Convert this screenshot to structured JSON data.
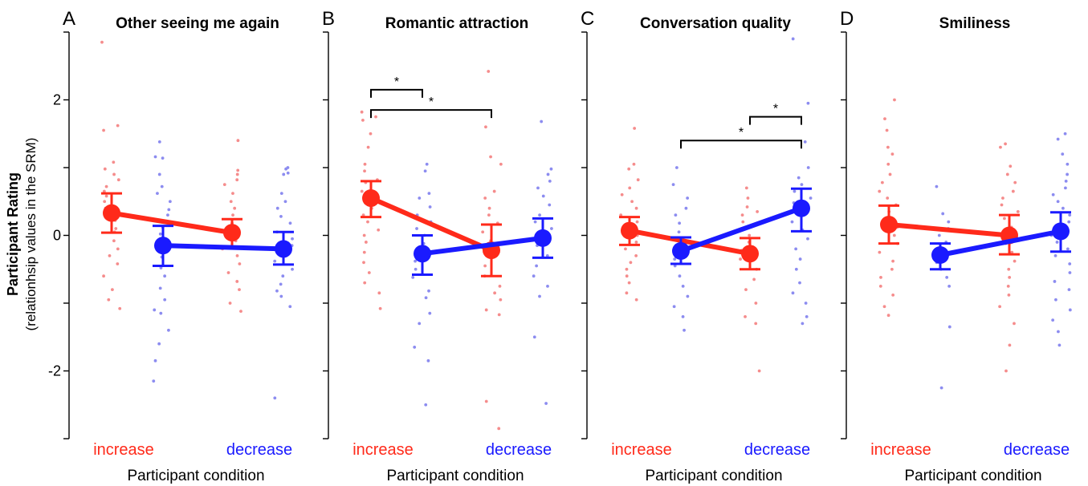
{
  "colors": {
    "increase": "#ff2a1a",
    "decrease": "#1a1aff",
    "increase_light": "#f58c8c",
    "decrease_light": "#8c8cf0"
  },
  "ylabel_bold": "Participant Rating",
  "ylabel_sub": "(relationhsip values in the SRM)",
  "chart_data": [
    {
      "type": "scatter",
      "letter": "A",
      "title": "Other seeing me again",
      "xlabel": "Participant condition",
      "ylim": [
        -3,
        3
      ],
      "yticks": [
        -2,
        0,
        2
      ],
      "categories": [
        "increase",
        "decrease"
      ],
      "show_ytick_labels": true,
      "series": [
        {
          "name": "increase",
          "means": [
            0.33,
            0.04
          ],
          "ci_low": [
            0.04,
            -0.18
          ],
          "ci_high": [
            0.62,
            0.24
          ]
        },
        {
          "name": "decrease",
          "means": [
            -0.15,
            -0.2
          ],
          "ci_low": [
            -0.45,
            -0.43
          ],
          "ci_high": [
            0.14,
            0.05
          ]
        }
      ],
      "points": [
        {
          "pos": 0,
          "series": "increase",
          "values": [
            2.85,
            1.62,
            1.55,
            1.08,
            0.98,
            0.9,
            0.82,
            0.72,
            0.65,
            0.58,
            0.5,
            0.4,
            0.35,
            0.3,
            0.22,
            0.1,
            0.05,
            -0.08,
            -0.2,
            -0.3,
            -0.42,
            -0.6,
            -0.8,
            -0.95,
            -1.08
          ]
        },
        {
          "pos": 1,
          "series": "decrease",
          "values": [
            1.38,
            1.16,
            1.14,
            0.9,
            0.72,
            0.62,
            0.5,
            0.38,
            0.3,
            0.2,
            0.12,
            0.02,
            -0.1,
            -0.2,
            -0.32,
            -0.48,
            -0.6,
            -0.78,
            -0.95,
            -1.1,
            -1.15,
            -1.4,
            -1.6,
            -1.85,
            -2.15
          ]
        },
        {
          "pos": 2,
          "series": "increase",
          "values": [
            1.4,
            0.96,
            0.9,
            0.82,
            0.75,
            0.62,
            0.5,
            0.4,
            0.3,
            0.18,
            0.1,
            0.02,
            -0.08,
            -0.2,
            -0.3,
            -0.42,
            -0.55,
            -0.68,
            -0.8,
            -1.0,
            -1.12
          ]
        },
        {
          "pos": 3,
          "series": "decrease",
          "values": [
            1.0,
            0.98,
            0.92,
            0.9,
            0.62,
            0.5,
            0.4,
            0.28,
            0.18,
            0.05,
            -0.05,
            -0.15,
            -0.25,
            -0.38,
            -0.5,
            -0.6,
            -0.72,
            -0.82,
            -0.9,
            -1.05,
            -2.4
          ]
        }
      ],
      "significance": []
    },
    {
      "type": "scatter",
      "letter": "B",
      "title": "Romantic attraction",
      "xlabel": "Participant condition",
      "ylim": [
        -3,
        3
      ],
      "yticks": [
        -2,
        0,
        2
      ],
      "categories": [
        "increase",
        "decrease"
      ],
      "show_ytick_labels": false,
      "series": [
        {
          "name": "increase",
          "means": [
            0.55,
            -0.22
          ],
          "ci_low": [
            0.27,
            -0.6
          ],
          "ci_high": [
            0.8,
            0.16
          ]
        },
        {
          "name": "decrease",
          "means": [
            -0.27,
            -0.04
          ],
          "ci_low": [
            -0.58,
            -0.33
          ],
          "ci_high": [
            0.0,
            0.25
          ]
        }
      ],
      "points": [
        {
          "pos": 0,
          "series": "increase",
          "values": [
            1.82,
            1.75,
            1.7,
            1.5,
            1.3,
            1.05,
            0.95,
            0.82,
            0.78,
            0.65,
            0.55,
            0.48,
            0.4,
            0.3,
            0.2,
            0.08,
            0.0,
            -0.1,
            -0.25,
            -0.4,
            -0.55,
            -0.7,
            -0.85,
            -1.08
          ]
        },
        {
          "pos": 1,
          "series": "decrease",
          "values": [
            1.05,
            0.95,
            0.62,
            0.55,
            0.42,
            0.3,
            0.2,
            0.1,
            0.0,
            -0.12,
            -0.25,
            -0.38,
            -0.5,
            -0.62,
            -0.82,
            -0.92,
            -1.15,
            -1.3,
            -1.65,
            -1.85,
            -2.5
          ]
        },
        {
          "pos": 2,
          "series": "increase",
          "values": [
            2.42,
            1.6,
            1.16,
            1.05,
            0.65,
            0.55,
            0.4,
            0.3,
            0.18,
            0.05,
            -0.08,
            -0.2,
            -0.3,
            -0.45,
            -0.6,
            -0.75,
            -0.85,
            -0.95,
            -1.1,
            -1.17,
            -2.45,
            -2.85
          ]
        },
        {
          "pos": 3,
          "series": "decrease",
          "values": [
            1.68,
            0.98,
            0.9,
            0.8,
            0.7,
            0.58,
            0.45,
            0.3,
            0.2,
            0.1,
            -0.02,
            -0.15,
            -0.3,
            -0.45,
            -0.6,
            -0.75,
            -0.9,
            -1.5,
            -2.48
          ]
        }
      ],
      "significance": [
        {
          "from": 0,
          "to": 1,
          "y": 2.15,
          "label": "*"
        },
        {
          "from": 0,
          "to": 2,
          "y": 1.85,
          "label": "*"
        }
      ]
    },
    {
      "type": "scatter",
      "letter": "C",
      "title": "Conversation quality",
      "xlabel": "Participant condition",
      "ylim": [
        -3,
        3
      ],
      "yticks": [
        -2,
        0,
        2
      ],
      "categories": [
        "increase",
        "decrease"
      ],
      "show_ytick_labels": false,
      "series": [
        {
          "name": "increase",
          "means": [
            0.07,
            -0.27
          ],
          "ci_low": [
            -0.14,
            -0.5
          ],
          "ci_high": [
            0.27,
            -0.04
          ]
        },
        {
          "name": "decrease",
          "means": [
            -0.23,
            0.4
          ],
          "ci_low": [
            -0.42,
            0.06
          ],
          "ci_high": [
            -0.03,
            0.69
          ]
        }
      ],
      "points": [
        {
          "pos": 0,
          "series": "increase",
          "values": [
            1.58,
            1.05,
            0.98,
            0.82,
            0.7,
            0.6,
            0.5,
            0.4,
            0.3,
            0.2,
            0.1,
            0.0,
            -0.1,
            -0.2,
            -0.3,
            -0.4,
            -0.5,
            -0.6,
            -0.7,
            -0.85,
            -0.95
          ]
        },
        {
          "pos": 1,
          "series": "decrease",
          "values": [
            1.0,
            0.75,
            0.55,
            0.4,
            0.3,
            0.18,
            0.05,
            -0.05,
            -0.15,
            -0.25,
            -0.35,
            -0.45,
            -0.6,
            -0.75,
            -0.9,
            -1.05,
            -1.2,
            -1.4
          ]
        },
        {
          "pos": 2,
          "series": "increase",
          "values": [
            0.7,
            0.55,
            0.42,
            0.35,
            0.3,
            0.2,
            0.1,
            0.0,
            -0.1,
            -0.22,
            -0.35,
            -0.5,
            -0.65,
            -0.8,
            -1.0,
            -1.2,
            -1.3,
            -2.0
          ]
        },
        {
          "pos": 3,
          "series": "decrease",
          "values": [
            2.9,
            1.95,
            1.38,
            1.0,
            0.85,
            0.75,
            0.65,
            0.55,
            0.48,
            0.38,
            0.3,
            0.2,
            0.08,
            -0.05,
            -0.2,
            -0.35,
            -0.5,
            -0.7,
            -0.85,
            -1.0,
            -1.2,
            -1.3
          ]
        }
      ],
      "significance": [
        {
          "from": 2,
          "to": 3,
          "y": 1.75,
          "label": "*"
        },
        {
          "from": 1,
          "to": 3,
          "y": 1.4,
          "label": "*"
        }
      ]
    },
    {
      "type": "scatter",
      "letter": "D",
      "title": "Smiliness",
      "xlabel": "Participant condition",
      "ylim": [
        -3,
        3
      ],
      "yticks": [
        -2,
        0,
        2
      ],
      "categories": [
        "increase",
        "decrease"
      ],
      "show_ytick_labels": false,
      "series": [
        {
          "name": "increase",
          "means": [
            0.16,
            0.0
          ],
          "ci_low": [
            -0.12,
            -0.28
          ],
          "ci_high": [
            0.44,
            0.3
          ]
        },
        {
          "name": "decrease",
          "means": [
            -0.29,
            0.06
          ],
          "ci_low": [
            -0.5,
            -0.24
          ],
          "ci_high": [
            -0.12,
            0.34
          ]
        }
      ],
      "points": [
        {
          "pos": 0,
          "series": "increase",
          "values": [
            2.0,
            1.72,
            1.55,
            1.3,
            1.2,
            1.05,
            0.9,
            0.78,
            0.65,
            0.55,
            0.45,
            0.35,
            0.25,
            0.12,
            0.0,
            -0.12,
            -0.25,
            -0.38,
            -0.5,
            -0.62,
            -0.75,
            -0.88,
            -1.05,
            -1.18
          ]
        },
        {
          "pos": 1,
          "series": "decrease",
          "values": [
            0.72,
            0.32,
            0.2,
            0.1,
            0.0,
            -0.1,
            -0.2,
            -0.3,
            -0.4,
            -0.5,
            -0.62,
            -0.75,
            -1.35,
            -2.25
          ]
        },
        {
          "pos": 2,
          "series": "increase",
          "values": [
            1.35,
            1.3,
            1.02,
            0.9,
            0.78,
            0.65,
            0.55,
            0.45,
            0.35,
            0.25,
            0.12,
            0.0,
            -0.12,
            -0.25,
            -0.38,
            -0.5,
            -0.62,
            -0.75,
            -0.88,
            -1.05,
            -1.3,
            -1.62,
            -2.0
          ]
        },
        {
          "pos": 3,
          "series": "decrease",
          "values": [
            1.5,
            1.42,
            1.2,
            1.05,
            0.9,
            0.8,
            0.7,
            0.6,
            0.5,
            0.4,
            0.3,
            0.2,
            0.1,
            0.0,
            -0.1,
            -0.2,
            -0.3,
            -0.42,
            -0.55,
            -0.68,
            -0.8,
            -0.95,
            -1.1,
            -1.25,
            -1.42,
            -1.62
          ]
        }
      ],
      "significance": []
    }
  ]
}
